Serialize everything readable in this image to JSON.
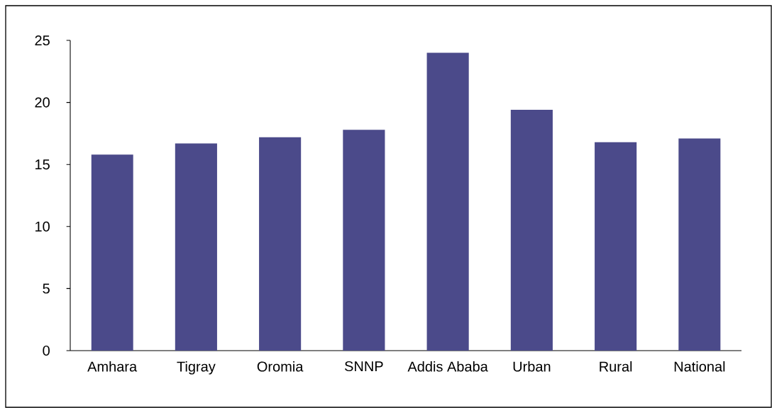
{
  "chart_data": {
    "type": "bar",
    "categories": [
      "Amhara",
      "Tigray",
      "Oromia",
      "SNNP",
      "Addis Ababa",
      "Urban",
      "Rural",
      "National"
    ],
    "values": [
      15.8,
      16.7,
      17.2,
      17.8,
      24.0,
      19.4,
      16.8,
      17.1
    ],
    "color": "#4b4a8a",
    "ylim": [
      0,
      25
    ],
    "yticks": [
      0,
      5,
      10,
      15,
      20,
      25
    ],
    "grid": false
  }
}
